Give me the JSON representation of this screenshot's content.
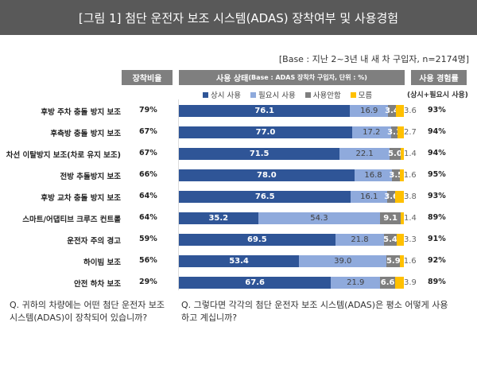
{
  "title": "[그림 1] 첨단 운전자 보조 시스템(ADAS) 장착여부 및 사용경험",
  "base": "[Base : 지난 2~3년 내 새 차 구입자, n=2174명]",
  "headers": {
    "rate": "장착비율",
    "status": "사용 상태",
    "status_sub": "(Base : ADAS 장착차 구입자, 단위 : %)",
    "exp": "사용 경험률",
    "exp_sub": "(상시+필요시 사용)"
  },
  "questions": {
    "q1": "Q. 귀하의 차량에는 어떤 첨단 운전자 보조 시스템(ADAS)이 장착되어 있습니까?",
    "q2": "Q. 그렇다면 각각의 첨단 운전자 보조 시스템(ADAS)은 평소 어떻게 사용하고 계십니까?"
  },
  "chart_data": {
    "type": "bar",
    "stacked": true,
    "orientation": "horizontal",
    "unit": "%",
    "categories": [
      "후방 주차 충돌 방지 보조",
      "후측방 충돌 방지 보조",
      "차선 이탈방지 보조(차로 유지 보조)",
      "전방 추돌방지 보조",
      "후방 교차 충돌 방지 보조",
      "스마트/어댑티브 크루즈 컨트롤",
      "운전자 주의 경고",
      "하이빔 보조",
      "안전 하차 보조"
    ],
    "install_rate": [
      "79%",
      "67%",
      "67%",
      "66%",
      "64%",
      "64%",
      "59%",
      "56%",
      "29%"
    ],
    "experience_rate": [
      "93%",
      "94%",
      "94%",
      "95%",
      "93%",
      "89%",
      "91%",
      "92%",
      "89%"
    ],
    "series": [
      {
        "name": "상시 사용",
        "color": "#2f5597",
        "text_color": "#ffffff",
        "values": [
          76.1,
          77.0,
          71.5,
          78.0,
          76.5,
          35.2,
          69.5,
          53.4,
          67.6
        ]
      },
      {
        "name": "필요시 사용",
        "color": "#8faadc",
        "text_color": "#404040",
        "values": [
          16.9,
          17.2,
          22.1,
          16.8,
          16.1,
          54.3,
          21.8,
          39.0,
          21.9
        ]
      },
      {
        "name": "사용안함",
        "color": "#7f7f7f",
        "text_color": "#ffffff",
        "values": [
          3.4,
          3.1,
          5.0,
          3.5,
          3.6,
          9.1,
          5.4,
          5.9,
          6.6
        ]
      },
      {
        "name": "모름",
        "color": "#ffc000",
        "text_color": "#404040",
        "values": [
          3.6,
          2.7,
          1.4,
          1.6,
          3.8,
          1.4,
          3.3,
          1.6,
          3.9
        ]
      }
    ],
    "xlim": [
      0,
      100
    ]
  }
}
